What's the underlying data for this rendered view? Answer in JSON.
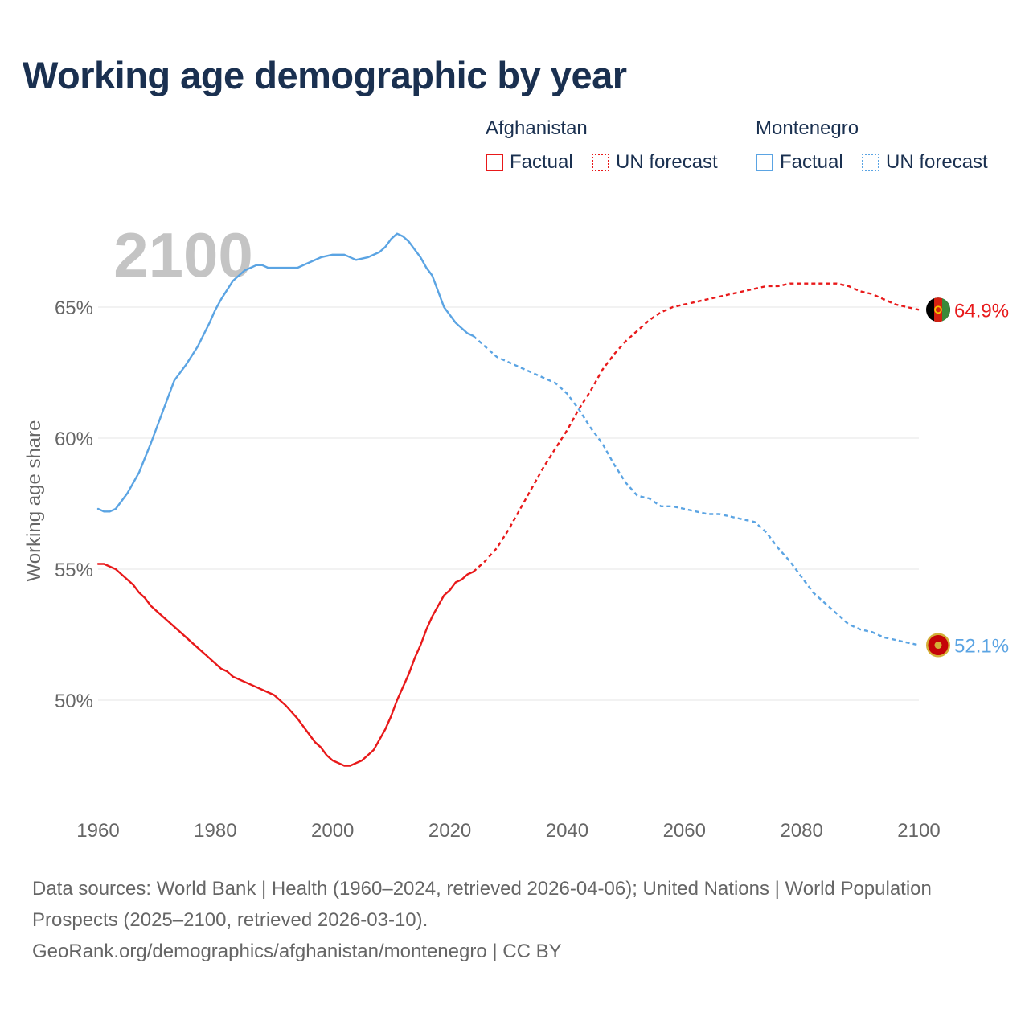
{
  "title": "Working age demographic by year",
  "year_watermark": "2100",
  "legend": {
    "groups": [
      {
        "name": "Afghanistan",
        "color": "#e8191a",
        "factual_label": "Factual",
        "forecast_label": "UN forecast"
      },
      {
        "name": "Montenegro",
        "color": "#5ba4e3",
        "factual_label": "Factual",
        "forecast_label": "UN forecast"
      }
    ]
  },
  "chart_data": {
    "type": "line",
    "title": "Working age demographic by year",
    "xlabel": "",
    "ylabel": "Working age share",
    "xlim": [
      1960,
      2100
    ],
    "ylim": [
      46,
      69
    ],
    "x_ticks": [
      1960,
      1980,
      2000,
      2020,
      2040,
      2060,
      2080,
      2100
    ],
    "y_ticks": [
      50,
      55,
      60,
      65
    ],
    "y_tick_labels": [
      "50%",
      "55%",
      "60%",
      "65%"
    ],
    "grid": true,
    "series": [
      {
        "name": "Afghanistan",
        "color": "#e8191a",
        "end_label": "64.9%",
        "factual": {
          "x": [
            1960,
            1961,
            1963,
            1965,
            1966,
            1967,
            1968,
            1969,
            1970,
            1972,
            1974,
            1976,
            1978,
            1980,
            1981,
            1982,
            1983,
            1985,
            1987,
            1988,
            1990,
            1992,
            1994,
            1996,
            1997,
            1998,
            1999,
            2000,
            2001,
            2002,
            2003,
            2004,
            2005,
            2006,
            2007,
            2008,
            2009,
            2010,
            2011,
            2012,
            2013,
            2014,
            2015,
            2016,
            2017,
            2018,
            2019,
            2020,
            2021,
            2022,
            2023,
            2024
          ],
          "y": [
            55.2,
            55.2,
            55.0,
            54.6,
            54.4,
            54.1,
            53.9,
            53.6,
            53.4,
            53.0,
            52.6,
            52.2,
            51.8,
            51.4,
            51.2,
            51.1,
            50.9,
            50.7,
            50.5,
            50.4,
            50.2,
            49.8,
            49.3,
            48.7,
            48.4,
            48.2,
            47.9,
            47.7,
            47.6,
            47.5,
            47.5,
            47.6,
            47.7,
            47.9,
            48.1,
            48.5,
            48.9,
            49.4,
            50.0,
            50.5,
            51.0,
            51.6,
            52.1,
            52.7,
            53.2,
            53.6,
            54.0,
            54.2,
            54.5,
            54.6,
            54.8,
            54.9
          ],
          "note": "values 1960-2024"
        },
        "forecast": {
          "x": [
            2024,
            2026,
            2028,
            2030,
            2032,
            2034,
            2036,
            2038,
            2040,
            2042,
            2044,
            2046,
            2048,
            2050,
            2052,
            2054,
            2056,
            2058,
            2060,
            2062,
            2064,
            2066,
            2068,
            2070,
            2072,
            2074,
            2076,
            2078,
            2080,
            2082,
            2084,
            2086,
            2088,
            2090,
            2092,
            2094,
            2096,
            2098,
            2100
          ],
          "y": [
            54.9,
            55.3,
            55.8,
            56.5,
            57.3,
            58.1,
            58.9,
            59.6,
            60.3,
            61.1,
            61.8,
            62.6,
            63.2,
            63.7,
            64.1,
            64.5,
            64.8,
            65.0,
            65.1,
            65.2,
            65.3,
            65.4,
            65.5,
            65.6,
            65.7,
            65.8,
            65.8,
            65.9,
            65.9,
            65.9,
            65.9,
            65.9,
            65.8,
            65.6,
            65.5,
            65.3,
            65.1,
            65.0,
            64.9
          ]
        }
      },
      {
        "name": "Montenegro",
        "color": "#5ba4e3",
        "end_label": "52.1%",
        "factual": {
          "x": [
            1960,
            1961,
            1962,
            1963,
            1965,
            1967,
            1969,
            1970,
            1972,
            1973,
            1975,
            1977,
            1979,
            1980,
            1981,
            1983,
            1985,
            1986,
            1987,
            1988,
            1989,
            1990,
            1992,
            1994,
            1996,
            1998,
            2000,
            2002,
            2004,
            2006,
            2008,
            2009,
            2010,
            2011,
            2012,
            2013,
            2014,
            2015,
            2016,
            2017,
            2018,
            2019,
            2020,
            2021,
            2022,
            2023,
            2024
          ],
          "y": [
            57.3,
            57.2,
            57.2,
            57.3,
            57.9,
            58.7,
            59.8,
            60.4,
            61.6,
            62.2,
            62.8,
            63.5,
            64.4,
            64.9,
            65.3,
            66.0,
            66.4,
            66.5,
            66.6,
            66.6,
            66.5,
            66.5,
            66.5,
            66.5,
            66.7,
            66.9,
            67.0,
            67.0,
            66.8,
            66.9,
            67.1,
            67.3,
            67.6,
            67.8,
            67.7,
            67.5,
            67.2,
            66.9,
            66.5,
            66.2,
            65.6,
            65.0,
            64.7,
            64.4,
            64.2,
            64.0,
            63.9
          ],
          "note": "values 1960-2024"
        },
        "forecast": {
          "x": [
            2024,
            2026,
            2028,
            2030,
            2032,
            2034,
            2036,
            2038,
            2040,
            2042,
            2044,
            2046,
            2048,
            2050,
            2052,
            2054,
            2056,
            2058,
            2060,
            2062,
            2064,
            2066,
            2068,
            2070,
            2072,
            2074,
            2076,
            2078,
            2080,
            2082,
            2084,
            2086,
            2088,
            2090,
            2092,
            2094,
            2096,
            2098,
            2100
          ],
          "y": [
            63.9,
            63.5,
            63.1,
            62.9,
            62.7,
            62.5,
            62.3,
            62.1,
            61.7,
            61.1,
            60.4,
            59.8,
            59.0,
            58.3,
            57.8,
            57.7,
            57.4,
            57.4,
            57.3,
            57.2,
            57.1,
            57.1,
            57.0,
            56.9,
            56.8,
            56.4,
            55.8,
            55.3,
            54.7,
            54.1,
            53.7,
            53.3,
            52.9,
            52.7,
            52.6,
            52.4,
            52.3,
            52.2,
            52.1
          ]
        }
      }
    ]
  },
  "footer": {
    "line1": "Data sources: World Bank | Health (1960–2024, retrieved 2026-04-06); United Nations | World Population Prospects (2025–2100, retrieved 2026-03-10).",
    "line2": "GeoRank.org/demographics/afghanistan/montenegro | CC BY"
  }
}
